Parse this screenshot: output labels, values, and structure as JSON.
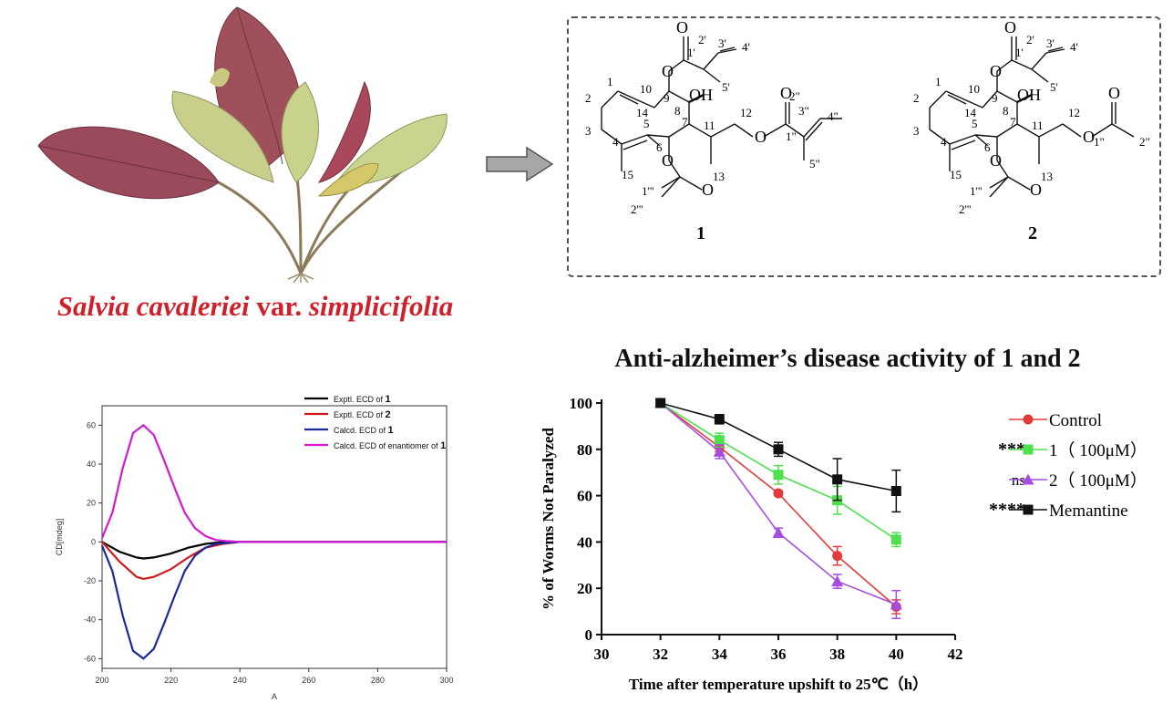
{
  "plant": {
    "caption_italic_1": "Salvia cavaleriei",
    "caption_normal": " var. ",
    "caption_italic_2": "simplicifolia",
    "leaf_icon": "plant-photo-icon"
  },
  "structures": {
    "compound1_label": "1",
    "compound2_label": "2",
    "atoms": {
      "oh": "OH",
      "o": "O"
    },
    "numbering1": [
      "1",
      "2",
      "3",
      "4",
      "5",
      "6",
      "7",
      "8",
      "9",
      "10",
      "11",
      "12",
      "13",
      "14",
      "15",
      "1'",
      "2'",
      "3'",
      "4'",
      "5'",
      "1\"",
      "2\"",
      "3\"",
      "4\"",
      "5\"",
      "1'''",
      "2'''"
    ],
    "numbering2": [
      "1",
      "2",
      "3",
      "4",
      "5",
      "6",
      "7",
      "8",
      "9",
      "10",
      "11",
      "12",
      "13",
      "14",
      "15",
      "1'",
      "2'",
      "3'",
      "4'",
      "5'",
      "1\"",
      "2\"",
      "1'''",
      "2'''"
    ]
  },
  "ecd_chart": {
    "type": "line",
    "xlabel": "A",
    "ylabel": "CD[mdeg]",
    "xlim": [
      200,
      300
    ],
    "ylim": [
      -65,
      70
    ],
    "x_ticks": [
      200,
      220,
      240,
      260,
      280,
      300
    ],
    "y_ticks": [
      60,
      40,
      20,
      0,
      -20,
      -40,
      -60
    ],
    "legend_position": "top-right",
    "series": [
      {
        "name_prefix": "Exptl. ECD of ",
        "name_bold": "1",
        "color": "#000000",
        "x": [
          200,
          205,
          210,
          212,
          215,
          220,
          225,
          230,
          235,
          240,
          250,
          260,
          280,
          300
        ],
        "values": [
          0,
          -5,
          -8,
          -8.5,
          -8,
          -6,
          -3,
          -1,
          0,
          0,
          0,
          0,
          0,
          0
        ]
      },
      {
        "name_prefix": "Exptl. ECD of ",
        "name_bold": "2",
        "color": "#d01818",
        "x": [
          200,
          205,
          210,
          212,
          215,
          220,
          225,
          230,
          235,
          240,
          250,
          260,
          280,
          300
        ],
        "values": [
          0,
          -10,
          -18,
          -19,
          -18,
          -14,
          -8,
          -3,
          -1,
          0,
          0,
          0,
          0,
          0
        ]
      },
      {
        "name_prefix": "Calcd. ECD of ",
        "name_bold": "1",
        "color": "#1a2a9c",
        "x": [
          200,
          203,
          206,
          209,
          212,
          215,
          218,
          221,
          224,
          227,
          230,
          233,
          236,
          240,
          250,
          260,
          280,
          300
        ],
        "values": [
          -2,
          -15,
          -38,
          -56,
          -60,
          -55,
          -42,
          -28,
          -15,
          -7,
          -3,
          -1,
          -0.5,
          0,
          0,
          0,
          0,
          0
        ]
      },
      {
        "name_prefix": "Calcd. ECD of enantiomer of ",
        "name_bold": "1",
        "color": "#d21ad2",
        "x": [
          200,
          203,
          206,
          209,
          212,
          215,
          218,
          221,
          224,
          227,
          230,
          233,
          236,
          240,
          250,
          260,
          280,
          300
        ],
        "values": [
          2,
          15,
          38,
          56,
          60,
          55,
          42,
          28,
          15,
          7,
          3,
          1,
          0.5,
          0,
          0,
          0,
          0,
          0
        ]
      }
    ]
  },
  "activity": {
    "title": "Anti-alzheimer’s disease activity of 1 and 2"
  },
  "chart_data": {
    "type": "line",
    "xlabel": "Time after temperature upshift to 25℃（h）",
    "ylabel": "% of Worms Not Paralyzed",
    "xlim": [
      30,
      42
    ],
    "ylim": [
      0,
      100
    ],
    "x_ticks": [
      30,
      32,
      34,
      36,
      38,
      40,
      42
    ],
    "y_ticks": [
      0,
      20,
      40,
      60,
      80,
      100
    ],
    "legend_position": "top-right",
    "x": [
      32,
      34,
      36,
      38,
      40
    ],
    "series": [
      {
        "name": "Control",
        "significance": "",
        "color": "#e23b3b",
        "marker": "circle",
        "values": [
          100,
          81,
          61,
          34,
          12
        ],
        "errors": [
          0,
          2,
          1,
          4,
          3
        ]
      },
      {
        "name": "1（ 100μM）",
        "significance": "***",
        "color": "#4ee04e",
        "marker": "square",
        "values": [
          100,
          84,
          69,
          58,
          41
        ],
        "errors": [
          0,
          3,
          4,
          6,
          3
        ]
      },
      {
        "name": "2（ 100μM）",
        "significance": "ns",
        "color": "#a64ee0",
        "marker": "triangle",
        "values": [
          100,
          79,
          44,
          23,
          13
        ],
        "errors": [
          0,
          3,
          2,
          3,
          6
        ]
      },
      {
        "name": "Memantine",
        "significance": "****",
        "color": "#111111",
        "marker": "square",
        "values": [
          100,
          93,
          80,
          67,
          62
        ],
        "errors": [
          0,
          2,
          3,
          9,
          9
        ]
      }
    ]
  }
}
